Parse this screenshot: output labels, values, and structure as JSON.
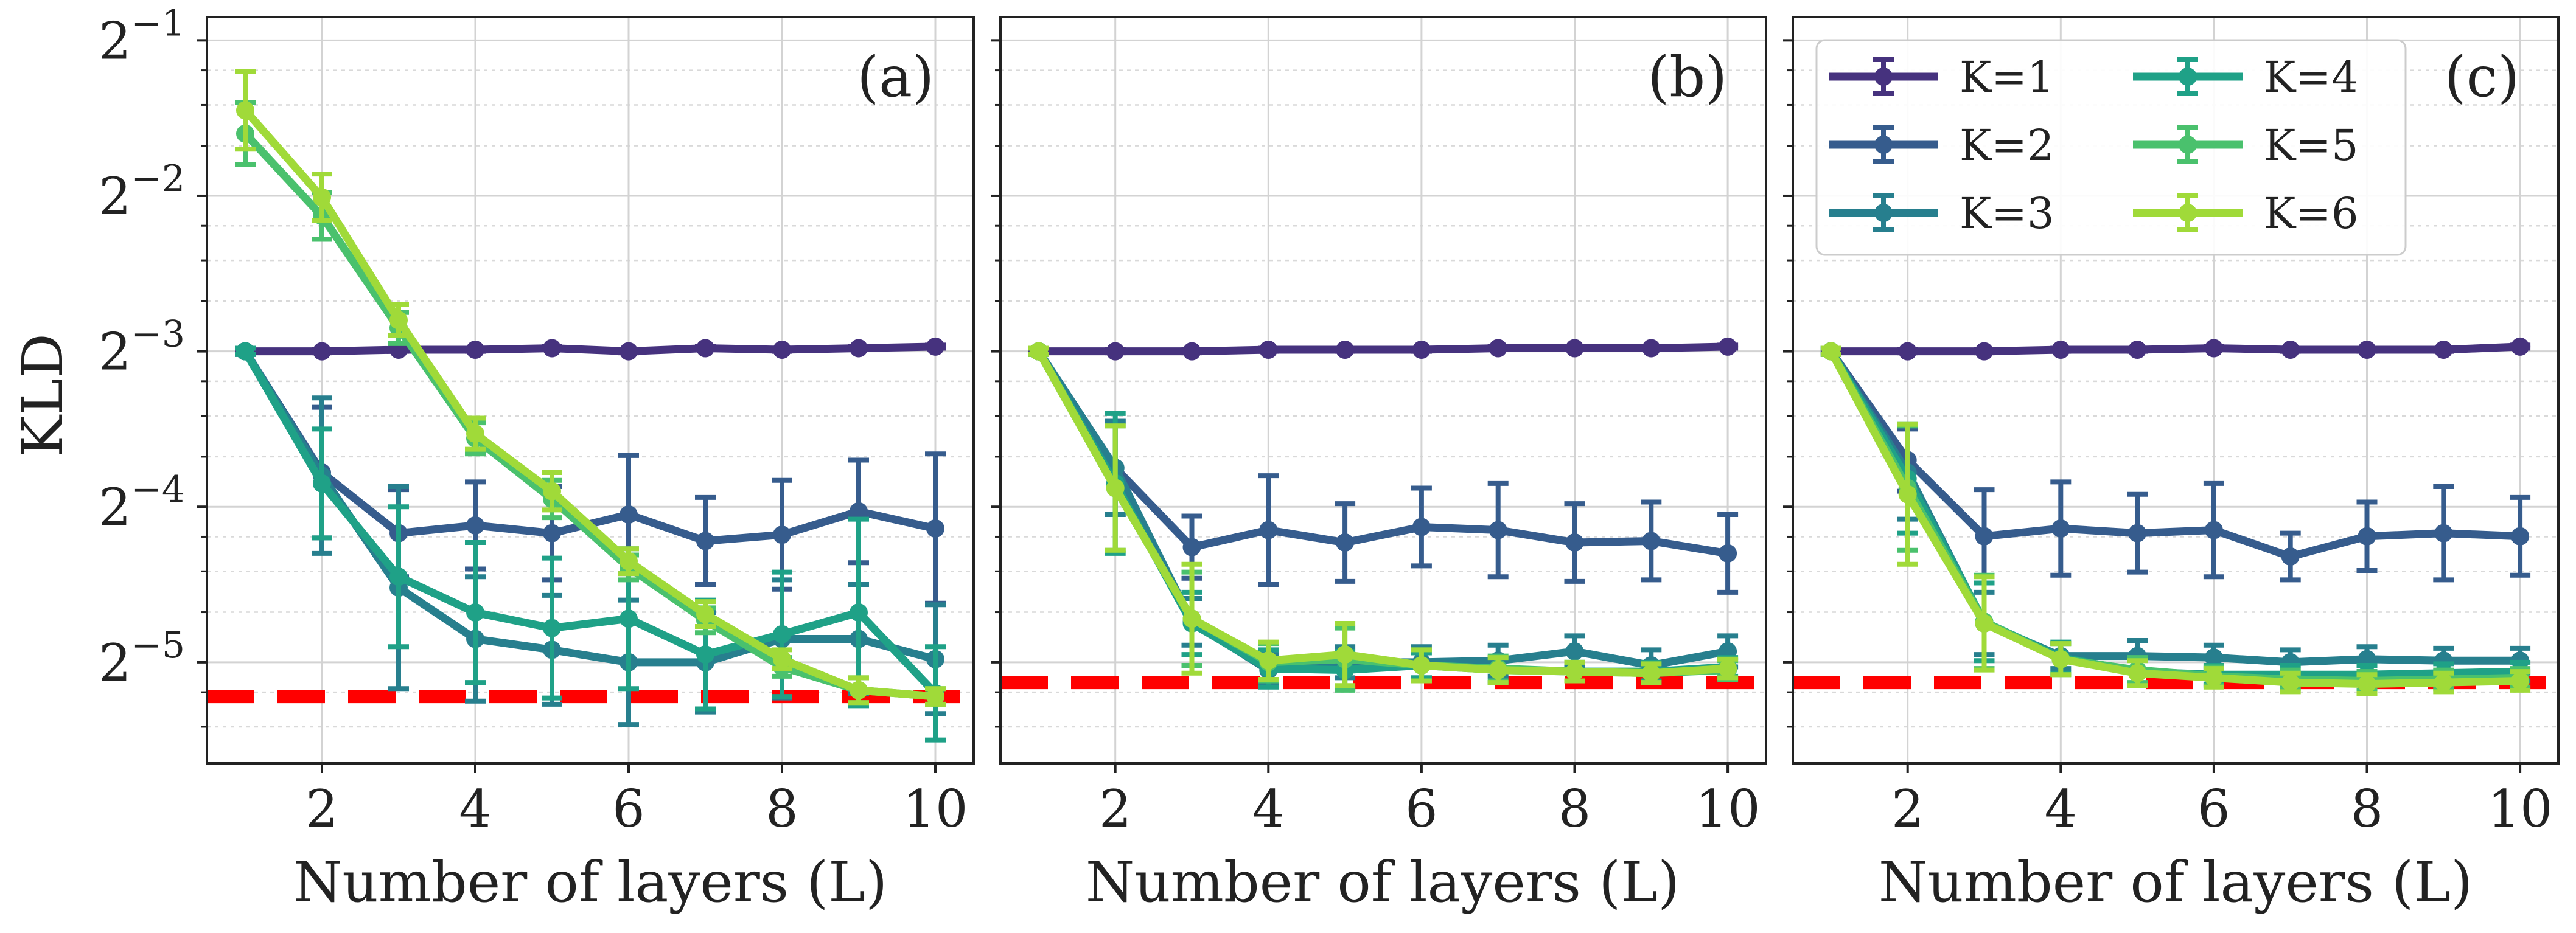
{
  "chart_data": [
    {
      "type": "line",
      "title": "",
      "panel_label": "(a)",
      "xlabel": "Number of layers (L)",
      "ylabel": "KLD",
      "yscale": "log2",
      "x": [
        1,
        2,
        3,
        4,
        5,
        6,
        7,
        8,
        9,
        10
      ],
      "xlim": [
        0.5,
        10.5
      ],
      "xticks": [
        2,
        4,
        6,
        8,
        10
      ],
      "ylim_log2": [
        -5.65,
        -0.85
      ],
      "yticks_log2": [
        -1,
        -2,
        -3,
        -4,
        -5
      ],
      "ytick_labels": [
        {
          "base": "2",
          "exp": "−1"
        },
        {
          "base": "2",
          "exp": "−2"
        },
        {
          "base": "2",
          "exp": "−3"
        },
        {
          "base": "2",
          "exp": "−4"
        },
        {
          "base": "2",
          "exp": "−5"
        }
      ],
      "reference_line_log2": -5.22,
      "series": [
        {
          "name": "K=1",
          "color": "#46327e",
          "log2": [
            -3.0,
            -3.0,
            -2.99,
            -2.99,
            -2.98,
            -3.0,
            -2.98,
            -2.99,
            -2.98,
            -2.97
          ],
          "err": [
            0.01,
            0.01,
            0.01,
            0.01,
            0.01,
            0.01,
            0.01,
            0.01,
            0.01,
            0.01
          ]
        },
        {
          "name": "K=2",
          "color": "#365c8d",
          "log2": [
            -3.0,
            -3.78,
            -4.17,
            -4.12,
            -4.17,
            -4.05,
            -4.22,
            -4.18,
            -4.03,
            -4.14
          ],
          "err": [
            0.02,
            0.42,
            0.28,
            0.28,
            0.3,
            0.38,
            0.28,
            0.35,
            0.33,
            0.48
          ]
        },
        {
          "name": "K=3",
          "color": "#277f8e",
          "log2": [
            -3.0,
            -3.8,
            -4.52,
            -4.85,
            -4.92,
            -5.0,
            -5.0,
            -4.85,
            -4.85,
            -4.98
          ],
          "err": [
            0.02,
            0.5,
            0.65,
            0.4,
            0.35,
            0.4,
            0.32,
            0.38,
            0.35,
            0.35
          ]
        },
        {
          "name": "K=4",
          "color": "#1fa187",
          "log2": [
            -3.0,
            -3.85,
            -4.45,
            -4.68,
            -4.78,
            -4.72,
            -4.95,
            -4.82,
            -4.68,
            -5.2
          ],
          "err": [
            0.02,
            0.35,
            0.45,
            0.45,
            0.45,
            0.45,
            0.35,
            0.4,
            0.6,
            0.3
          ]
        },
        {
          "name": "K=5",
          "color": "#4ac16d",
          "log2": [
            -1.6,
            -2.13,
            -2.85,
            -3.56,
            -3.95,
            -4.39,
            -4.73,
            -5.03,
            -5.18,
            -5.22
          ],
          "err": [
            0.2,
            0.15,
            0.1,
            0.1,
            0.12,
            0.08,
            0.08,
            0.06,
            0.08,
            0.05
          ]
        },
        {
          "name": "K=6",
          "color": "#a0da39",
          "log2": [
            -1.45,
            -2.01,
            -2.8,
            -3.53,
            -3.9,
            -4.35,
            -4.69,
            -4.98,
            -5.18,
            -5.22
          ],
          "err": [
            0.25,
            0.15,
            0.1,
            0.1,
            0.12,
            0.08,
            0.08,
            0.06,
            0.08,
            0.05
          ]
        }
      ]
    },
    {
      "type": "line",
      "title": "",
      "panel_label": "(b)",
      "xlabel": "Number of layers (L)",
      "ylabel": "",
      "yscale": "log2",
      "x": [
        1,
        2,
        3,
        4,
        5,
        6,
        7,
        8,
        9,
        10
      ],
      "xlim": [
        0.5,
        10.5
      ],
      "xticks": [
        2,
        4,
        6,
        8,
        10
      ],
      "ylim_log2": [
        -5.65,
        -0.85
      ],
      "yticks_log2": [
        -1,
        -2,
        -3,
        -4,
        -5
      ],
      "ytick_labels": [],
      "reference_line_log2": -5.13,
      "series": [
        {
          "name": "K=1",
          "color": "#46327e",
          "log2": [
            -3.0,
            -3.0,
            -3.0,
            -2.99,
            -2.99,
            -2.99,
            -2.98,
            -2.98,
            -2.98,
            -2.97
          ],
          "err": [
            0.01,
            0.01,
            0.01,
            0.01,
            0.01,
            0.01,
            0.01,
            0.01,
            0.01,
            0.01
          ]
        },
        {
          "name": "K=2",
          "color": "#365c8d",
          "log2": [
            -3.0,
            -3.75,
            -4.26,
            -4.15,
            -4.23,
            -4.13,
            -4.15,
            -4.23,
            -4.22,
            -4.3
          ],
          "err": [
            0.02,
            0.3,
            0.2,
            0.35,
            0.25,
            0.25,
            0.3,
            0.25,
            0.25,
            0.25
          ]
        },
        {
          "name": "K=3",
          "color": "#277f8e",
          "log2": [
            -3.0,
            -3.75,
            -4.74,
            -5.05,
            -5.0,
            -5.0,
            -4.99,
            -4.93,
            -5.02,
            -4.93
          ],
          "err": [
            0.02,
            0.3,
            0.15,
            0.1,
            0.1,
            0.1,
            0.1,
            0.1,
            0.1,
            0.1
          ]
        },
        {
          "name": "K=4",
          "color": "#1fa187",
          "log2": [
            -3.0,
            -3.85,
            -4.75,
            -5.04,
            -5.05,
            -5.02,
            -5.05,
            -5.06,
            -5.06,
            -5.03
          ],
          "err": [
            0.02,
            0.45,
            0.2,
            0.12,
            0.12,
            0.08,
            0.08,
            0.06,
            0.06,
            0.06
          ]
        },
        {
          "name": "K=5",
          "color": "#4ac16d",
          "log2": [
            -3.0,
            -3.88,
            -4.72,
            -5.0,
            -4.98,
            -5.02,
            -5.04,
            -5.06,
            -5.07,
            -5.05
          ],
          "err": [
            0.02,
            0.4,
            0.3,
            0.12,
            0.2,
            0.1,
            0.08,
            0.06,
            0.06,
            0.06
          ]
        },
        {
          "name": "K=6",
          "color": "#a0da39",
          "log2": [
            -3.0,
            -3.88,
            -4.72,
            -4.99,
            -4.95,
            -5.02,
            -5.05,
            -5.06,
            -5.07,
            -5.04
          ],
          "err": [
            0.02,
            0.4,
            0.35,
            0.12,
            0.2,
            0.1,
            0.08,
            0.06,
            0.06,
            0.06
          ]
        }
      ]
    },
    {
      "type": "line",
      "title": "",
      "panel_label": "(c)",
      "xlabel": "Number of layers (L)",
      "ylabel": "",
      "yscale": "log2",
      "x": [
        1,
        2,
        3,
        4,
        5,
        6,
        7,
        8,
        9,
        10
      ],
      "xlim": [
        0.5,
        10.5
      ],
      "xticks": [
        2,
        4,
        6,
        8,
        10
      ],
      "ylim_log2": [
        -5.65,
        -0.85
      ],
      "yticks_log2": [
        -1,
        -2,
        -3,
        -4,
        -5
      ],
      "ytick_labels": [],
      "reference_line_log2": -5.13,
      "series": [
        {
          "name": "K=1",
          "color": "#46327e",
          "log2": [
            -3.0,
            -3.0,
            -3.0,
            -2.99,
            -2.99,
            -2.98,
            -2.99,
            -2.99,
            -2.99,
            -2.97
          ],
          "err": [
            0.01,
            0.01,
            0.01,
            0.01,
            0.01,
            0.01,
            0.01,
            0.01,
            0.01,
            0.01
          ]
        },
        {
          "name": "K=2",
          "color": "#365c8d",
          "log2": [
            -3.0,
            -3.7,
            -4.19,
            -4.14,
            -4.17,
            -4.15,
            -4.32,
            -4.19,
            -4.17,
            -4.19
          ],
          "err": [
            0.02,
            0.2,
            0.3,
            0.3,
            0.25,
            0.3,
            0.15,
            0.22,
            0.3,
            0.25
          ]
        },
        {
          "name": "K=3",
          "color": "#277f8e",
          "log2": [
            -3.0,
            -3.78,
            -4.75,
            -4.96,
            -4.96,
            -4.97,
            -5.0,
            -4.98,
            -4.99,
            -4.99
          ],
          "err": [
            0.02,
            0.3,
            0.2,
            0.08,
            0.1,
            0.08,
            0.08,
            0.08,
            0.08,
            0.08
          ]
        },
        {
          "name": "K=4",
          "color": "#1fa187",
          "log2": [
            -3.0,
            -3.82,
            -4.74,
            -4.97,
            -5.06,
            -5.08,
            -5.08,
            -5.08,
            -5.07,
            -5.06
          ],
          "err": [
            0.02,
            0.35,
            0.25,
            0.1,
            0.08,
            0.06,
            0.06,
            0.06,
            0.06,
            0.06
          ]
        },
        {
          "name": "K=5",
          "color": "#4ac16d",
          "log2": [
            -3.0,
            -3.88,
            -4.74,
            -4.98,
            -5.05,
            -5.09,
            -5.11,
            -5.12,
            -5.11,
            -5.1
          ],
          "err": [
            0.02,
            0.4,
            0.3,
            0.1,
            0.08,
            0.06,
            0.06,
            0.06,
            0.06,
            0.06
          ]
        },
        {
          "name": "K=6",
          "color": "#a0da39",
          "log2": [
            -3.0,
            -3.92,
            -4.75,
            -4.98,
            -5.07,
            -5.1,
            -5.13,
            -5.14,
            -5.13,
            -5.12
          ],
          "err": [
            0.02,
            0.45,
            0.3,
            0.1,
            0.08,
            0.06,
            0.06,
            0.06,
            0.06,
            0.06
          ]
        }
      ]
    }
  ],
  "legend": {
    "placement": "top-left of panel (c)",
    "entries": [
      "K=1",
      "K=2",
      "K=3",
      "K=4",
      "K=5",
      "K=6"
    ]
  },
  "reference_line_color": "#ff0000"
}
